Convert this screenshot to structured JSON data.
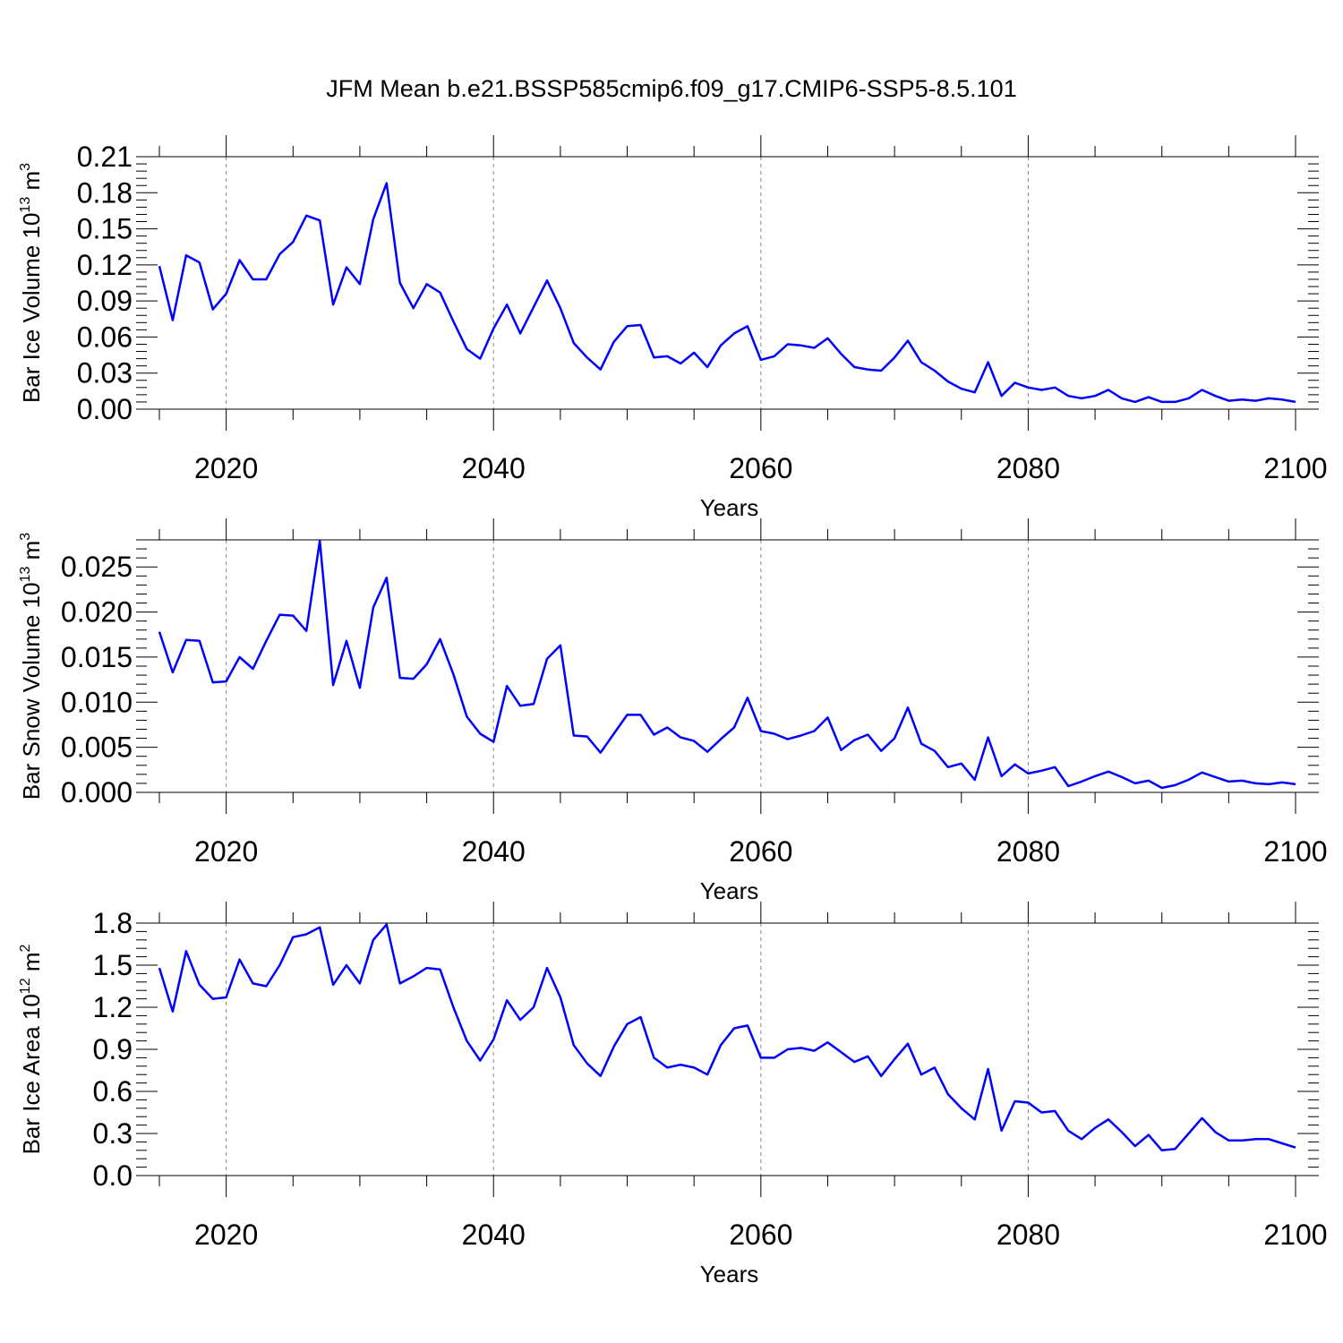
{
  "title": "JFM Mean b.e21.BSSP585cmip6.f09_g17.CMIP6-SSP5-8.5.101",
  "colors": {
    "line": "#0000ff",
    "axis": "#000000",
    "grid": "#888888"
  },
  "chart_data": [
    {
      "type": "line",
      "xlabel": "Years",
      "ylabel_parts": [
        "Bar Ice Volume 10",
        "13",
        " m",
        "3"
      ],
      "xlim": [
        2015,
        2100
      ],
      "ylim": [
        0,
        0.21
      ],
      "xticks": [
        "2020",
        "2040",
        "2060",
        "2080",
        "2100"
      ],
      "yticks": [
        "0.00",
        "0.03",
        "0.06",
        "0.09",
        "0.12",
        "0.15",
        "0.18",
        "0.21"
      ],
      "grid": "x-dashed",
      "series": [
        {
          "x_start": 2015,
          "values": [
            0.119,
            0.074,
            0.128,
            0.122,
            0.083,
            0.096,
            0.124,
            0.108,
            0.108,
            0.129,
            0.139,
            0.161,
            0.157,
            0.087,
            0.118,
            0.104,
            0.158,
            0.188,
            0.105,
            0.084,
            0.104,
            0.097,
            0.073,
            0.05,
            0.042,
            0.067,
            0.087,
            0.063,
            0.085,
            0.107,
            0.084,
            0.055,
            0.043,
            0.033,
            0.056,
            0.069,
            0.07,
            0.043,
            0.044,
            0.038,
            0.047,
            0.035,
            0.053,
            0.063,
            0.069,
            0.041,
            0.044,
            0.054,
            0.053,
            0.051,
            0.059,
            0.046,
            0.035,
            0.033,
            0.032,
            0.043,
            0.057,
            0.039,
            0.032,
            0.023,
            0.017,
            0.014,
            0.039,
            0.011,
            0.022,
            0.018,
            0.016,
            0.018,
            0.011,
            0.009,
            0.011,
            0.016,
            0.009,
            0.006,
            0.01,
            0.006,
            0.006,
            0.009,
            0.016,
            0.011,
            0.007,
            0.008,
            0.007,
            0.009,
            0.008,
            0.006
          ]
        }
      ]
    },
    {
      "type": "line",
      "xlabel": "Years",
      "ylabel_parts": [
        "Bar Snow Volume 10",
        "13",
        " m",
        "3"
      ],
      "xlim": [
        2015,
        2100
      ],
      "ylim": [
        0,
        0.028
      ],
      "xticks": [
        "2020",
        "2040",
        "2060",
        "2080",
        "2100"
      ],
      "yticks": [
        "0.000",
        "0.005",
        "0.010",
        "0.015",
        "0.020",
        "0.025"
      ],
      "grid": "x-dashed",
      "series": [
        {
          "x_start": 2015,
          "values": [
            0.0178,
            0.0133,
            0.0169,
            0.0168,
            0.0122,
            0.0123,
            0.015,
            0.0137,
            0.0168,
            0.0197,
            0.0196,
            0.0179,
            0.0279,
            0.0119,
            0.0168,
            0.0116,
            0.0205,
            0.0238,
            0.0127,
            0.0126,
            0.0142,
            0.017,
            0.0131,
            0.0084,
            0.0065,
            0.0056,
            0.0118,
            0.0096,
            0.0098,
            0.0148,
            0.0163,
            0.0063,
            0.0062,
            0.0044,
            0.0065,
            0.0086,
            0.0086,
            0.0064,
            0.0072,
            0.0061,
            0.0057,
            0.0045,
            0.0059,
            0.0072,
            0.0105,
            0.0068,
            0.0065,
            0.0059,
            0.0063,
            0.0068,
            0.0083,
            0.0047,
            0.0058,
            0.0064,
            0.0046,
            0.006,
            0.0094,
            0.0054,
            0.0046,
            0.0028,
            0.0032,
            0.0014,
            0.0061,
            0.0018,
            0.0031,
            0.0021,
            0.0024,
            0.0028,
            0.0007,
            0.0012,
            0.0018,
            0.0023,
            0.0017,
            0.001,
            0.0013,
            0.0005,
            0.0008,
            0.0014,
            0.0022,
            0.0017,
            0.0012,
            0.0013,
            0.001,
            0.0009,
            0.0011,
            0.0009
          ]
        }
      ]
    },
    {
      "type": "line",
      "xlabel": "Years",
      "ylabel_parts": [
        "Bar Ice Area 10",
        "12",
        " m",
        "2"
      ],
      "xlim": [
        2015,
        2100
      ],
      "ylim": [
        0,
        1.8
      ],
      "xticks": [
        "2020",
        "2040",
        "2060",
        "2080",
        "2100"
      ],
      "yticks": [
        "0.0",
        "0.3",
        "0.6",
        "0.9",
        "1.2",
        "1.5",
        "1.8"
      ],
      "grid": "x-dashed",
      "series": [
        {
          "x_start": 2015,
          "values": [
            1.48,
            1.17,
            1.6,
            1.36,
            1.26,
            1.27,
            1.54,
            1.37,
            1.35,
            1.5,
            1.7,
            1.72,
            1.77,
            1.36,
            1.5,
            1.37,
            1.68,
            1.79,
            1.37,
            1.42,
            1.48,
            1.47,
            1.2,
            0.96,
            0.82,
            0.97,
            1.25,
            1.11,
            1.2,
            1.48,
            1.27,
            0.93,
            0.8,
            0.71,
            0.92,
            1.08,
            1.13,
            0.84,
            0.77,
            0.79,
            0.77,
            0.72,
            0.93,
            1.05,
            1.07,
            0.84,
            0.84,
            0.9,
            0.91,
            0.89,
            0.95,
            0.88,
            0.81,
            0.85,
            0.71,
            0.83,
            0.94,
            0.72,
            0.77,
            0.58,
            0.48,
            0.4,
            0.76,
            0.32,
            0.53,
            0.52,
            0.45,
            0.46,
            0.32,
            0.26,
            0.34,
            0.4,
            0.31,
            0.21,
            0.29,
            0.18,
            0.19,
            0.3,
            0.41,
            0.31,
            0.25,
            0.25,
            0.26,
            0.26,
            0.23,
            0.2
          ]
        }
      ]
    }
  ]
}
